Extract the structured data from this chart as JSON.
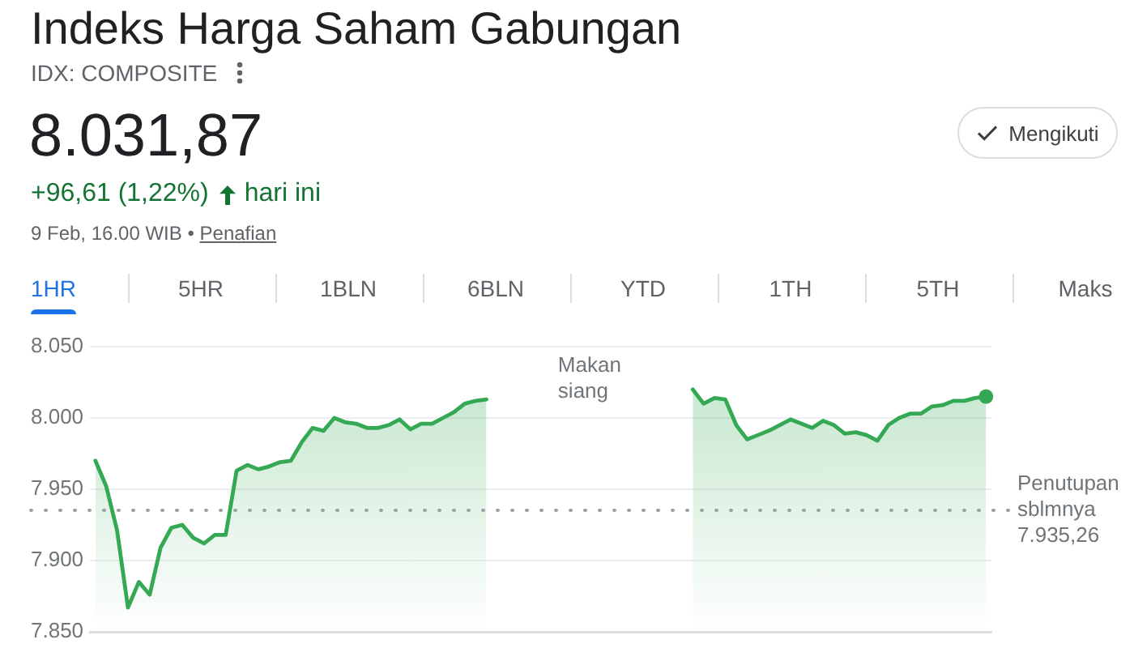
{
  "chart_data": {
    "type": "area",
    "title": "Indeks Harga Saham Gabungan",
    "subtitle": "IDX: COMPOSITE",
    "annotations": [
      "8.031,87",
      "+96,61 (1,22%)",
      "hari ini",
      "9 Feb, 16.00 WIB •",
      "Penafian",
      "Mengikuti",
      "1HR",
      "5HR",
      "1BLN",
      "6BLN",
      "YTD",
      "1TH",
      "5TH",
      "Maks",
      "Makan siang"
    ],
    "categories": [
      null,
      null,
      null,
      null,
      null,
      null,
      null,
      null,
      null,
      null,
      null,
      null,
      null,
      null,
      null,
      null,
      null,
      null,
      null,
      null,
      null,
      null,
      null,
      null,
      null,
      null,
      null,
      null,
      null,
      null,
      null,
      null,
      null,
      null,
      null,
      null,
      null,
      null,
      null,
      null,
      null,
      null,
      null,
      null,
      null,
      null,
      null,
      null,
      null,
      null,
      null,
      null,
      null,
      null,
      null,
      null,
      null,
      null,
      null,
      null,
      null,
      null,
      null,
      null,
      null,
      null,
      null,
      null,
      null,
      null,
      null,
      null,
      null,
      null,
      null,
      null,
      null,
      null,
      null,
      null,
      null,
      null,
      null
    ],
    "series": [
      {
        "color": "#34a853",
        "values": [
          7970,
          7952,
          7921,
          7867,
          7885,
          7876,
          7909,
          7923,
          7925,
          7916,
          7912,
          7918,
          7918,
          7963,
          7967,
          7964,
          7966,
          7969,
          7970,
          7983,
          7993,
          7991,
          8000,
          7997,
          7996,
          7993,
          7993,
          7995,
          7999,
          7992,
          7996,
          7996,
          8000,
          8004,
          8010,
          8012,
          8013,
          null,
          null,
          null,
          null,
          null,
          null,
          null,
          null,
          null,
          null,
          null,
          null,
          null,
          null,
          null,
          null,
          null,
          null,
          null,
          null,
          null,
          null,
          null,
          null,
          null,
          null,
          null,
          null,
          null,
          null,
          null,
          null,
          null,
          null,
          null,
          null,
          null,
          null,
          null,
          null,
          null,
          null,
          null,
          null,
          null,
          null
        ]
      },
      {
        "color": "#34a853",
        "values": [
          null,
          null,
          null,
          null,
          null,
          null,
          null,
          null,
          null,
          null,
          null,
          null,
          null,
          null,
          null,
          null,
          null,
          null,
          null,
          null,
          null,
          null,
          null,
          null,
          null,
          null,
          null,
          null,
          null,
          null,
          null,
          null,
          null,
          null,
          null,
          null,
          null,
          null,
          null,
          null,
          null,
          null,
          null,
          null,
          null,
          null,
          null,
          null,
          null,
          null,
          null,
          null,
          null,
          null,
          null,
          8020,
          8010,
          8014,
          8013,
          7995,
          7985,
          7988,
          7991,
          7995,
          7999,
          7996,
          7993,
          7998,
          7995,
          7989,
          7990,
          7988,
          7984,
          7995,
          8000,
          8003,
          8003,
          8008,
          8009,
          8012,
          8012,
          8014,
          8015
        ]
      },
      {
        "type": "scatter",
        "color": "#34a853",
        "values": [
          null,
          null,
          null,
          null,
          null,
          null,
          null,
          null,
          null,
          null,
          null,
          null,
          null,
          null,
          null,
          null,
          null,
          null,
          null,
          null,
          null,
          null,
          null,
          null,
          null,
          null,
          null,
          null,
          null,
          null,
          null,
          null,
          null,
          null,
          null,
          null,
          null,
          null,
          null,
          null,
          null,
          null,
          null,
          null,
          null,
          null,
          null,
          null,
          null,
          null,
          null,
          null,
          null,
          null,
          null,
          null,
          null,
          null,
          null,
          null,
          null,
          null,
          null,
          null,
          null,
          null,
          null,
          null,
          null,
          null,
          null,
          null,
          null,
          null,
          null,
          null,
          null,
          null,
          null,
          null,
          null,
          null,
          8015
        ]
      }
    ],
    "ylim": [
      7850,
      8050
    ],
    "yticks": [
      {
        "value": 7850,
        "label": "7.850"
      },
      {
        "value": 7900,
        "label": "7.900"
      },
      {
        "value": 7950,
        "label": "7.950"
      },
      {
        "value": 8000,
        "label": "8.000"
      },
      {
        "value": 8050,
        "label": "8.050"
      }
    ],
    "ref_lines": [
      {
        "axis": "y",
        "value": 7935.26,
        "label": "Penutupan sblmnya 7.935,26",
        "color": "#9aa0a6",
        "line_style": "dotted"
      }
    ],
    "grid": "y",
    "tick_labels": "y"
  }
}
